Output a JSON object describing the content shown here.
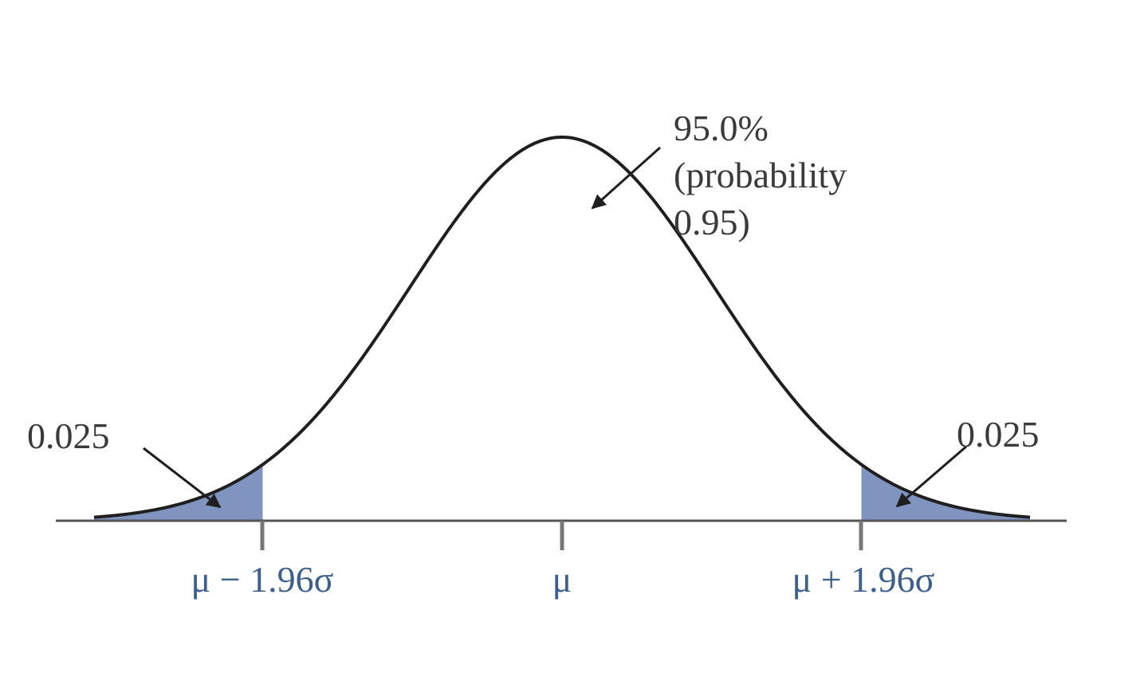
{
  "diagram": {
    "center_annotation": {
      "lines": [
        "95.0%",
        "(probability",
        "0.95)"
      ]
    },
    "left_tail_label": "0.025",
    "right_tail_label": "0.025",
    "ticks": {
      "left": "μ − 1.96σ",
      "center": "μ",
      "right": "μ + 1.96σ"
    },
    "distribution": {
      "type": "normal",
      "central_probability": 0.95,
      "tail_probability": 0.025,
      "z_critical": 1.96
    },
    "colors": {
      "curve": "#1f1f1f",
      "axis": "#555555",
      "tail_fill": "#7f95bf",
      "tick_text": "#3d5f8a",
      "annotation_text": "#3a3a3a"
    }
  }
}
